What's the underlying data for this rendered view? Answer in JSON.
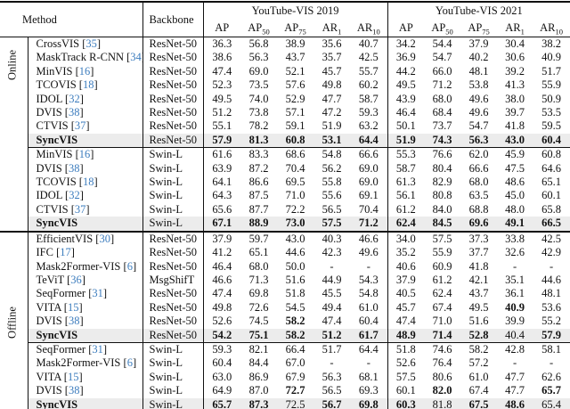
{
  "table": {
    "colors": {
      "citation": "#3d7dbe",
      "highlight": "#ececec",
      "rule": "#111111"
    },
    "header": {
      "method": "Method",
      "backbone": "Backbone",
      "groups": [
        {
          "title": "YouTube-VIS 2019",
          "metrics": [
            {
              "t": "AP",
              "s": ""
            },
            {
              "t": "AP",
              "s": "50"
            },
            {
              "t": "AP",
              "s": "75"
            },
            {
              "t": "AR",
              "s": "1"
            },
            {
              "t": "AR",
              "s": "10"
            }
          ]
        },
        {
          "title": "YouTube-VIS 2021",
          "metrics": [
            {
              "t": "AP",
              "s": ""
            },
            {
              "t": "AP",
              "s": "50"
            },
            {
              "t": "AP",
              "s": "75"
            },
            {
              "t": "AR",
              "s": "1"
            },
            {
              "t": "AR",
              "s": "10"
            }
          ]
        }
      ]
    },
    "sections": [
      {
        "label": "Online",
        "blocks": [
          {
            "rows": [
              {
                "method": "CrossVIS",
                "cite": "35",
                "backbone": "ResNet-50",
                "values": [
                  "36.3",
                  "56.8",
                  "38.9",
                  "35.6",
                  "40.7",
                  "34.2",
                  "54.4",
                  "37.9",
                  "30.4",
                  "38.2"
                ]
              },
              {
                "method": "MaskTrack R-CNN",
                "cite": "34",
                "backbone": "ResNet-50",
                "values": [
                  "38.6",
                  "56.3",
                  "43.7",
                  "35.7",
                  "42.5",
                  "36.9",
                  "54.7",
                  "40.2",
                  "30.6",
                  "40.9"
                ]
              },
              {
                "method": "MinVIS",
                "cite": "16",
                "backbone": "ResNet-50",
                "values": [
                  "47.4",
                  "69.0",
                  "52.1",
                  "45.7",
                  "55.7",
                  "44.2",
                  "66.0",
                  "48.1",
                  "39.2",
                  "51.7"
                ]
              },
              {
                "method": "TCOVIS",
                "cite": "18",
                "backbone": "ResNet-50",
                "values": [
                  "52.3",
                  "73.5",
                  "57.6",
                  "49.8",
                  "60.2",
                  "49.5",
                  "71.2",
                  "53.8",
                  "41.3",
                  "55.9"
                ]
              },
              {
                "method": "IDOL",
                "cite": "32",
                "backbone": "ResNet-50",
                "values": [
                  "49.5",
                  "74.0",
                  "52.9",
                  "47.7",
                  "58.7",
                  "43.9",
                  "68.0",
                  "49.6",
                  "38.0",
                  "50.9"
                ]
              },
              {
                "method": "DVIS",
                "cite": "38",
                "backbone": "ResNet-50",
                "values": [
                  "51.2",
                  "73.8",
                  "57.1",
                  "47.2",
                  "59.3",
                  "46.4",
                  "68.4",
                  "49.6",
                  "39.7",
                  "53.5"
                ]
              },
              {
                "method": "CTVIS",
                "cite": "37",
                "backbone": "ResNet-50",
                "values": [
                  "55.1",
                  "78.2",
                  "59.1",
                  "51.9",
                  "63.2",
                  "50.1",
                  "73.7",
                  "54.7",
                  "41.8",
                  "59.5"
                ]
              },
              {
                "method": "SyncVIS",
                "cite": "",
                "backbone": "ResNet-50",
                "highlight": true,
                "bold": [
                  1,
                  1,
                  1,
                  1,
                  1,
                  1,
                  1,
                  1,
                  1,
                  1
                ],
                "values": [
                  "57.9",
                  "81.3",
                  "60.8",
                  "53.1",
                  "64.4",
                  "51.9",
                  "74.3",
                  "56.3",
                  "43.0",
                  "60.4"
                ]
              }
            ]
          },
          {
            "rows": [
              {
                "method": "MinVIS",
                "cite": "16",
                "backbone": "Swin-L",
                "values": [
                  "61.6",
                  "83.3",
                  "68.6",
                  "54.8",
                  "66.6",
                  "55.3",
                  "76.6",
                  "62.0",
                  "45.9",
                  "60.8"
                ]
              },
              {
                "method": "DVIS",
                "cite": "38",
                "backbone": "Swin-L",
                "values": [
                  "63.9",
                  "87.2",
                  "70.4",
                  "56.2",
                  "69.0",
                  "58.7",
                  "80.4",
                  "66.6",
                  "47.5",
                  "64.6"
                ]
              },
              {
                "method": "TCOVIS",
                "cite": "18",
                "backbone": "Swin-L",
                "values": [
                  "64.1",
                  "86.6",
                  "69.5",
                  "55.8",
                  "69.0",
                  "61.3",
                  "82.9",
                  "68.0",
                  "48.6",
                  "65.1"
                ]
              },
              {
                "method": "IDOL",
                "cite": "32",
                "backbone": "Swin-L",
                "values": [
                  "64.3",
                  "87.5",
                  "71.0",
                  "55.6",
                  "69.1",
                  "56.1",
                  "80.8",
                  "63.5",
                  "45.0",
                  "60.1"
                ]
              },
              {
                "method": "CTVIS",
                "cite": "37",
                "backbone": "Swin-L",
                "values": [
                  "65.6",
                  "87.7",
                  "72.2",
                  "56.5",
                  "70.4",
                  "61.2",
                  "84.0",
                  "68.8",
                  "48.0",
                  "65.8"
                ]
              },
              {
                "method": "SyncVIS",
                "cite": "",
                "backbone": "Swin-L",
                "highlight": true,
                "bold": [
                  1,
                  1,
                  1,
                  1,
                  1,
                  1,
                  1,
                  1,
                  1,
                  1
                ],
                "values": [
                  "67.1",
                  "88.9",
                  "73.0",
                  "57.5",
                  "71.2",
                  "62.4",
                  "84.5",
                  "69.6",
                  "49.1",
                  "66.5"
                ]
              }
            ]
          }
        ]
      },
      {
        "label": "Offline",
        "blocks": [
          {
            "rows": [
              {
                "method": "EfficientVIS",
                "cite": "30",
                "backbone": "ResNet-50",
                "values": [
                  "37.9",
                  "59.7",
                  "43.0",
                  "40.3",
                  "46.6",
                  "34.0",
                  "57.5",
                  "37.3",
                  "33.8",
                  "42.5"
                ]
              },
              {
                "method": "IFC",
                "cite": "17",
                "backbone": "ResNet-50",
                "values": [
                  "41.2",
                  "65.1",
                  "44.6",
                  "42.3",
                  "49.6",
                  "35.2",
                  "55.9",
                  "37.7",
                  "32.6",
                  "42.9"
                ]
              },
              {
                "method": "Mask2Former-VIS",
                "cite": "6",
                "backbone": "ResNet-50",
                "values": [
                  "46.4",
                  "68.0",
                  "50.0",
                  "-",
                  "-",
                  "40.6",
                  "60.9",
                  "41.8",
                  "-",
                  "-"
                ]
              },
              {
                "method": "TeViT",
                "cite": "36",
                "backbone": "MsgShifT",
                "values": [
                  "46.6",
                  "71.3",
                  "51.6",
                  "44.9",
                  "54.3",
                  "37.9",
                  "61.2",
                  "42.1",
                  "35.1",
                  "44.6"
                ]
              },
              {
                "method": "SeqFormer",
                "cite": "31",
                "backbone": "ResNet-50",
                "values": [
                  "47.4",
                  "69.8",
                  "51.8",
                  "45.5",
                  "54.8",
                  "40.5",
                  "62.4",
                  "43.7",
                  "36.1",
                  "48.1"
                ]
              },
              {
                "method": "VITA",
                "cite": "15",
                "backbone": "ResNet-50",
                "bold": [
                  0,
                  0,
                  0,
                  0,
                  0,
                  0,
                  0,
                  0,
                  1,
                  0
                ],
                "values": [
                  "49.8",
                  "72.6",
                  "54.5",
                  "49.4",
                  "61.0",
                  "45.7",
                  "67.4",
                  "49.5",
                  "40.9",
                  "53.6"
                ]
              },
              {
                "method": "DVIS",
                "cite": "38",
                "backbone": "ResNet-50",
                "bold": [
                  0,
                  0,
                  1,
                  0,
                  0,
                  0,
                  0,
                  0,
                  0,
                  0
                ],
                "values": [
                  "52.6",
                  "74.5",
                  "58.2",
                  "47.4",
                  "60.4",
                  "47.4",
                  "71.0",
                  "51.6",
                  "39.9",
                  "55.2"
                ]
              },
              {
                "method": "SyncVIS",
                "cite": "",
                "backbone": "ResNet-50",
                "highlight": true,
                "bold": [
                  1,
                  1,
                  1,
                  1,
                  1,
                  1,
                  1,
                  1,
                  0,
                  1
                ],
                "values": [
                  "54.2",
                  "75.1",
                  "58.2",
                  "51.2",
                  "61.7",
                  "48.9",
                  "71.4",
                  "52.8",
                  "40.4",
                  "57.9"
                ]
              }
            ]
          },
          {
            "rows": [
              {
                "method": "SeqFormer",
                "cite": "31",
                "backbone": "Swin-L",
                "values": [
                  "59.3",
                  "82.1",
                  "66.4",
                  "51.7",
                  "64.4",
                  "51.8",
                  "74.6",
                  "58.2",
                  "42.8",
                  "58.1"
                ]
              },
              {
                "method": "Mask2Former-VIS",
                "cite": "6",
                "backbone": "Swin-L",
                "values": [
                  "60.4",
                  "84.4",
                  "67.0",
                  "-",
                  "-",
                  "52.6",
                  "76.4",
                  "57.2",
                  "-",
                  "-"
                ]
              },
              {
                "method": "VITA",
                "cite": "15",
                "backbone": "Swin-L",
                "values": [
                  "63.0",
                  "86.9",
                  "67.9",
                  "56.3",
                  "68.1",
                  "57.5",
                  "80.6",
                  "61.0",
                  "47.7",
                  "62.6"
                ]
              },
              {
                "method": "DVIS",
                "cite": "38",
                "backbone": "Swin-L",
                "bold": [
                  0,
                  0,
                  1,
                  0,
                  0,
                  0,
                  1,
                  0,
                  0,
                  1
                ],
                "values": [
                  "64.9",
                  "87.0",
                  "72.7",
                  "56.5",
                  "69.3",
                  "60.1",
                  "82.0",
                  "67.4",
                  "47.7",
                  "65.7"
                ]
              },
              {
                "method": "SyncVIS",
                "cite": "",
                "backbone": "Swin-L",
                "highlight": true,
                "bold": [
                  1,
                  1,
                  0,
                  1,
                  1,
                  1,
                  0,
                  1,
                  1,
                  0
                ],
                "values": [
                  "65.7",
                  "87.3",
                  "72.5",
                  "56.7",
                  "69.8",
                  "60.3",
                  "81.8",
                  "67.5",
                  "48.6",
                  "65.4"
                ]
              }
            ]
          }
        ]
      }
    ]
  }
}
